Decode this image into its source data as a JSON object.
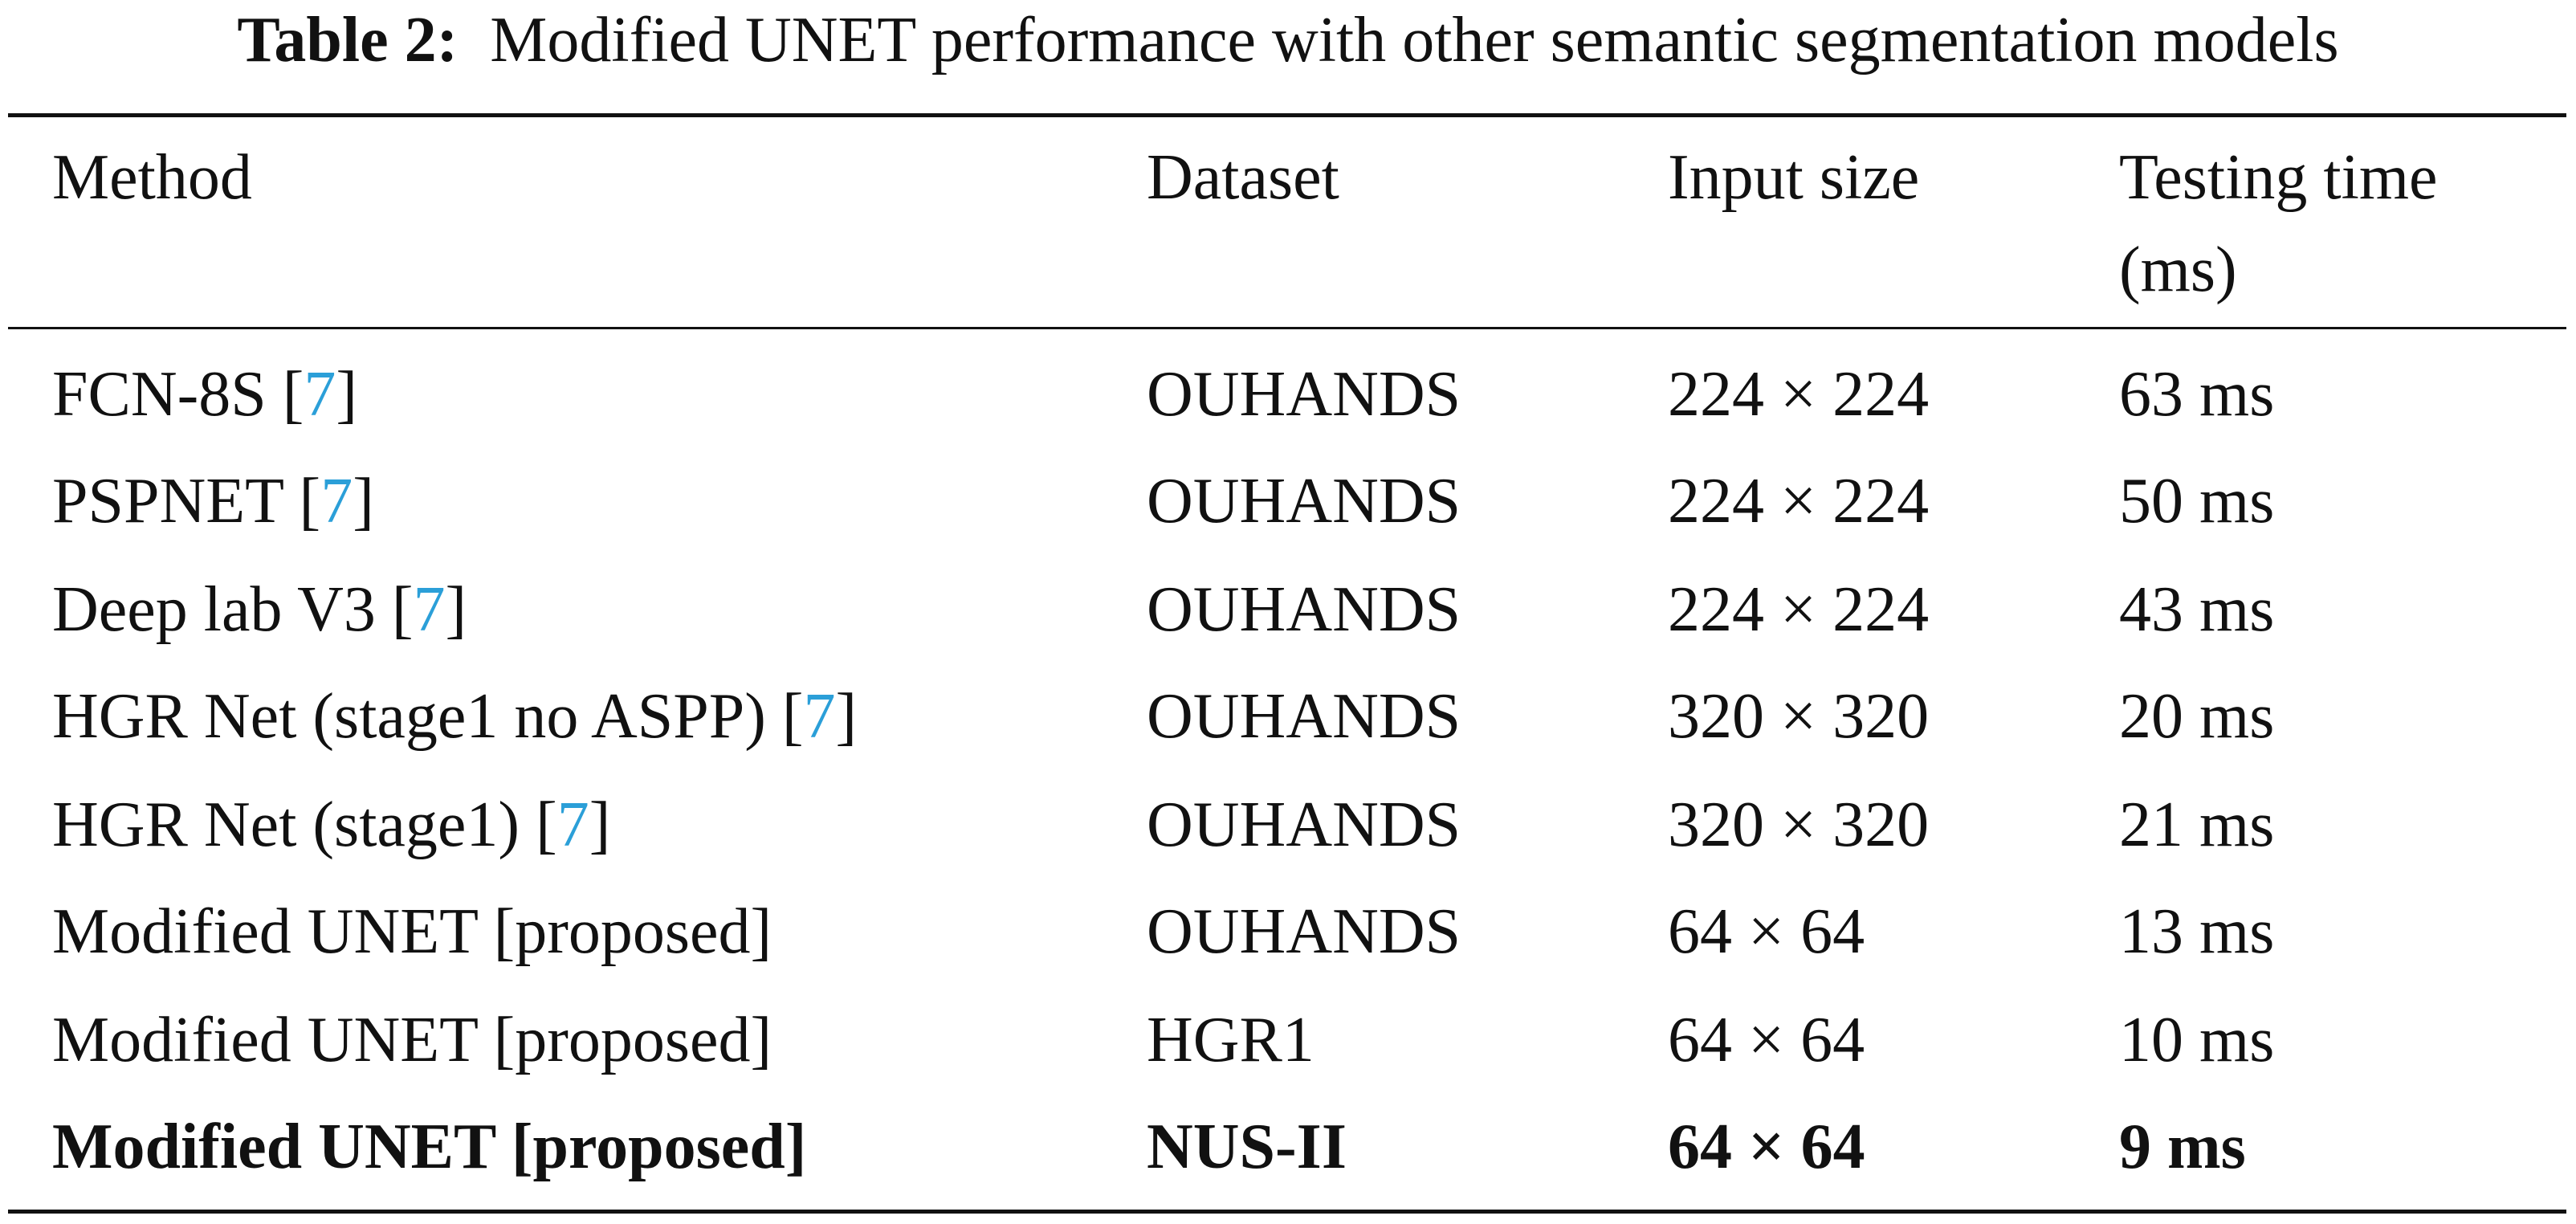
{
  "caption": {
    "label": "Table 2:",
    "text": "Modified UNET performance with other semantic segmentation models"
  },
  "table": {
    "header": [
      "Method",
      "Dataset",
      "Input size",
      "Testing time (ms)"
    ],
    "rows": [
      [
        {
          "text": "FCN-8S [",
          "cite": "7",
          "close": "]"
        },
        "OUHANDS",
        "224 × 224",
        "63 ms"
      ],
      [
        {
          "text": "PSPNET [",
          "cite": "7",
          "close": "]"
        },
        "OUHANDS",
        "224 × 224",
        "50 ms"
      ],
      [
        {
          "text": "Deep lab V3 [",
          "cite": "7",
          "close": "]"
        },
        "OUHANDS",
        "224 × 224",
        "43 ms"
      ],
      [
        {
          "text": "HGR Net (stage1 no ASPP) [",
          "cite": "7",
          "close": "]"
        },
        "OUHANDS",
        "320 × 320",
        "20 ms"
      ],
      [
        {
          "text": "HGR Net (stage1) [",
          "cite": "7",
          "close": "]"
        },
        "OUHANDS",
        "320 × 320",
        "21 ms"
      ],
      [
        {
          "text": "Modified UNET [proposed]"
        },
        "OUHANDS",
        "64 × 64",
        "13 ms"
      ],
      [
        {
          "text": "Modified UNET [proposed]"
        },
        "HGR1",
        "64 × 64",
        "10 ms"
      ],
      [
        {
          "text": "Modified UNET [proposed]"
        },
        "NUS-II",
        "64 × 64",
        "9 ms"
      ]
    ],
    "bold_row": 7,
    "cite_color": "#2b9fd8"
  }
}
